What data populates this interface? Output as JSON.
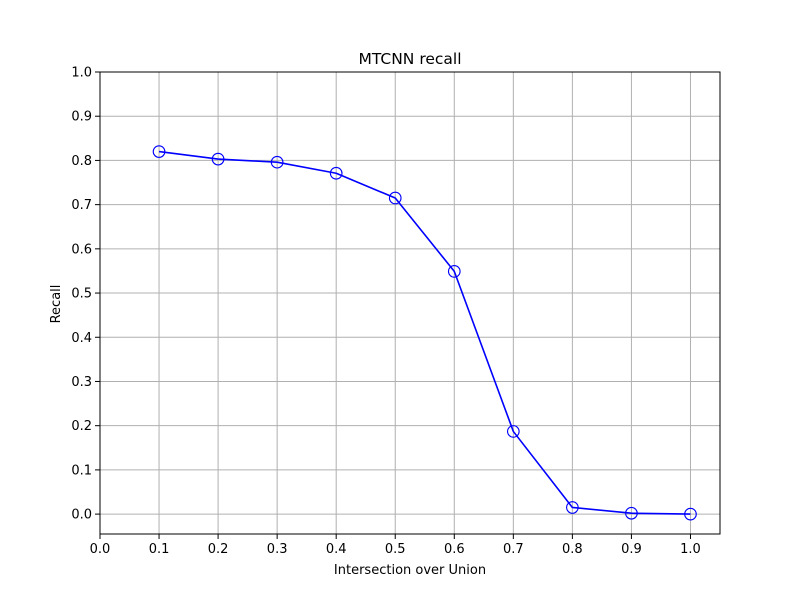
{
  "chart_data": {
    "type": "line",
    "title": "MTCNN recall",
    "xlabel": "Intersection over Union",
    "ylabel": "Recall",
    "xlim": [
      0.0,
      1.05
    ],
    "ylim": [
      -0.045,
      1.0
    ],
    "grid": true,
    "xticks": [
      "0.0",
      "0.1",
      "0.2",
      "0.3",
      "0.4",
      "0.5",
      "0.6",
      "0.7",
      "0.8",
      "0.9",
      "1.0"
    ],
    "yticks": [
      "0.0",
      "0.1",
      "0.2",
      "0.3",
      "0.4",
      "0.5",
      "0.6",
      "0.7",
      "0.8",
      "0.9",
      "1.0"
    ],
    "series": [
      {
        "color": "#0000ff",
        "marker": "circle-open",
        "x": [
          0.1,
          0.2,
          0.3,
          0.4,
          0.5,
          0.6,
          0.7,
          0.8,
          0.9,
          1.0
        ],
        "y": [
          0.82,
          0.803,
          0.796,
          0.771,
          0.715,
          0.549,
          0.187,
          0.015,
          0.002,
          0.0
        ]
      }
    ]
  }
}
